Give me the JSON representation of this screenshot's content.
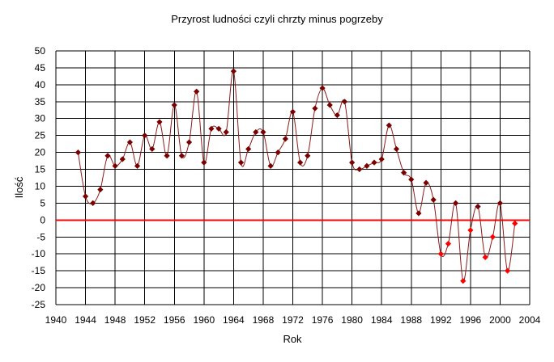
{
  "chart_data": {
    "type": "line",
    "title": "Przyrost ludności czyli chrzty minus pogrzeby",
    "xlabel": "Rok",
    "ylabel": "Ilość",
    "xlim": [
      1940,
      2004
    ],
    "ylim": [
      -25,
      50
    ],
    "x_ticks": [
      1940,
      1944,
      1948,
      1952,
      1956,
      1960,
      1964,
      1968,
      1972,
      1976,
      1980,
      1984,
      1988,
      1992,
      1996,
      2000,
      2004
    ],
    "y_ticks": [
      -25,
      -20,
      -15,
      -10,
      -5,
      0,
      5,
      10,
      15,
      20,
      25,
      30,
      35,
      40,
      45,
      50
    ],
    "grid": true,
    "legend": "none",
    "colors": {
      "line": "#8b1a1a",
      "marker": "#7a0000",
      "marker_negative": "#ff0000",
      "zero_line": "#ff0000",
      "grid": "#000000"
    },
    "series": [
      {
        "x": [
          1943,
          1944,
          1945,
          1946,
          1947,
          1948,
          1949,
          1950,
          1951,
          1952,
          1953,
          1954,
          1955,
          1956,
          1957,
          1958,
          1959,
          1960,
          1961,
          1962,
          1963,
          1964,
          1965,
          1966,
          1967,
          1968,
          1969,
          1970,
          1971,
          1972,
          1973,
          1974,
          1975,
          1976,
          1977,
          1978,
          1979,
          1980,
          1981,
          1982,
          1983,
          1984,
          1985,
          1986,
          1987,
          1988,
          1989,
          1990,
          1991,
          1992,
          1993,
          1994,
          1995,
          1996,
          1997,
          1998,
          1999,
          2000,
          2001,
          2002
        ],
        "values": [
          20,
          7,
          5,
          9,
          19,
          16,
          18,
          23,
          16,
          25,
          21,
          29,
          19,
          34,
          19,
          23,
          38,
          17,
          27,
          27,
          26,
          44,
          17,
          21,
          26,
          26,
          16,
          20,
          24,
          32,
          17,
          19,
          33,
          39,
          34,
          31,
          35,
          17,
          15,
          16,
          17,
          18,
          28,
          21,
          14,
          12,
          2,
          11,
          6,
          -10,
          -7,
          5,
          -18,
          -3,
          4,
          -11,
          -5,
          5,
          -15,
          -1
        ]
      }
    ]
  }
}
